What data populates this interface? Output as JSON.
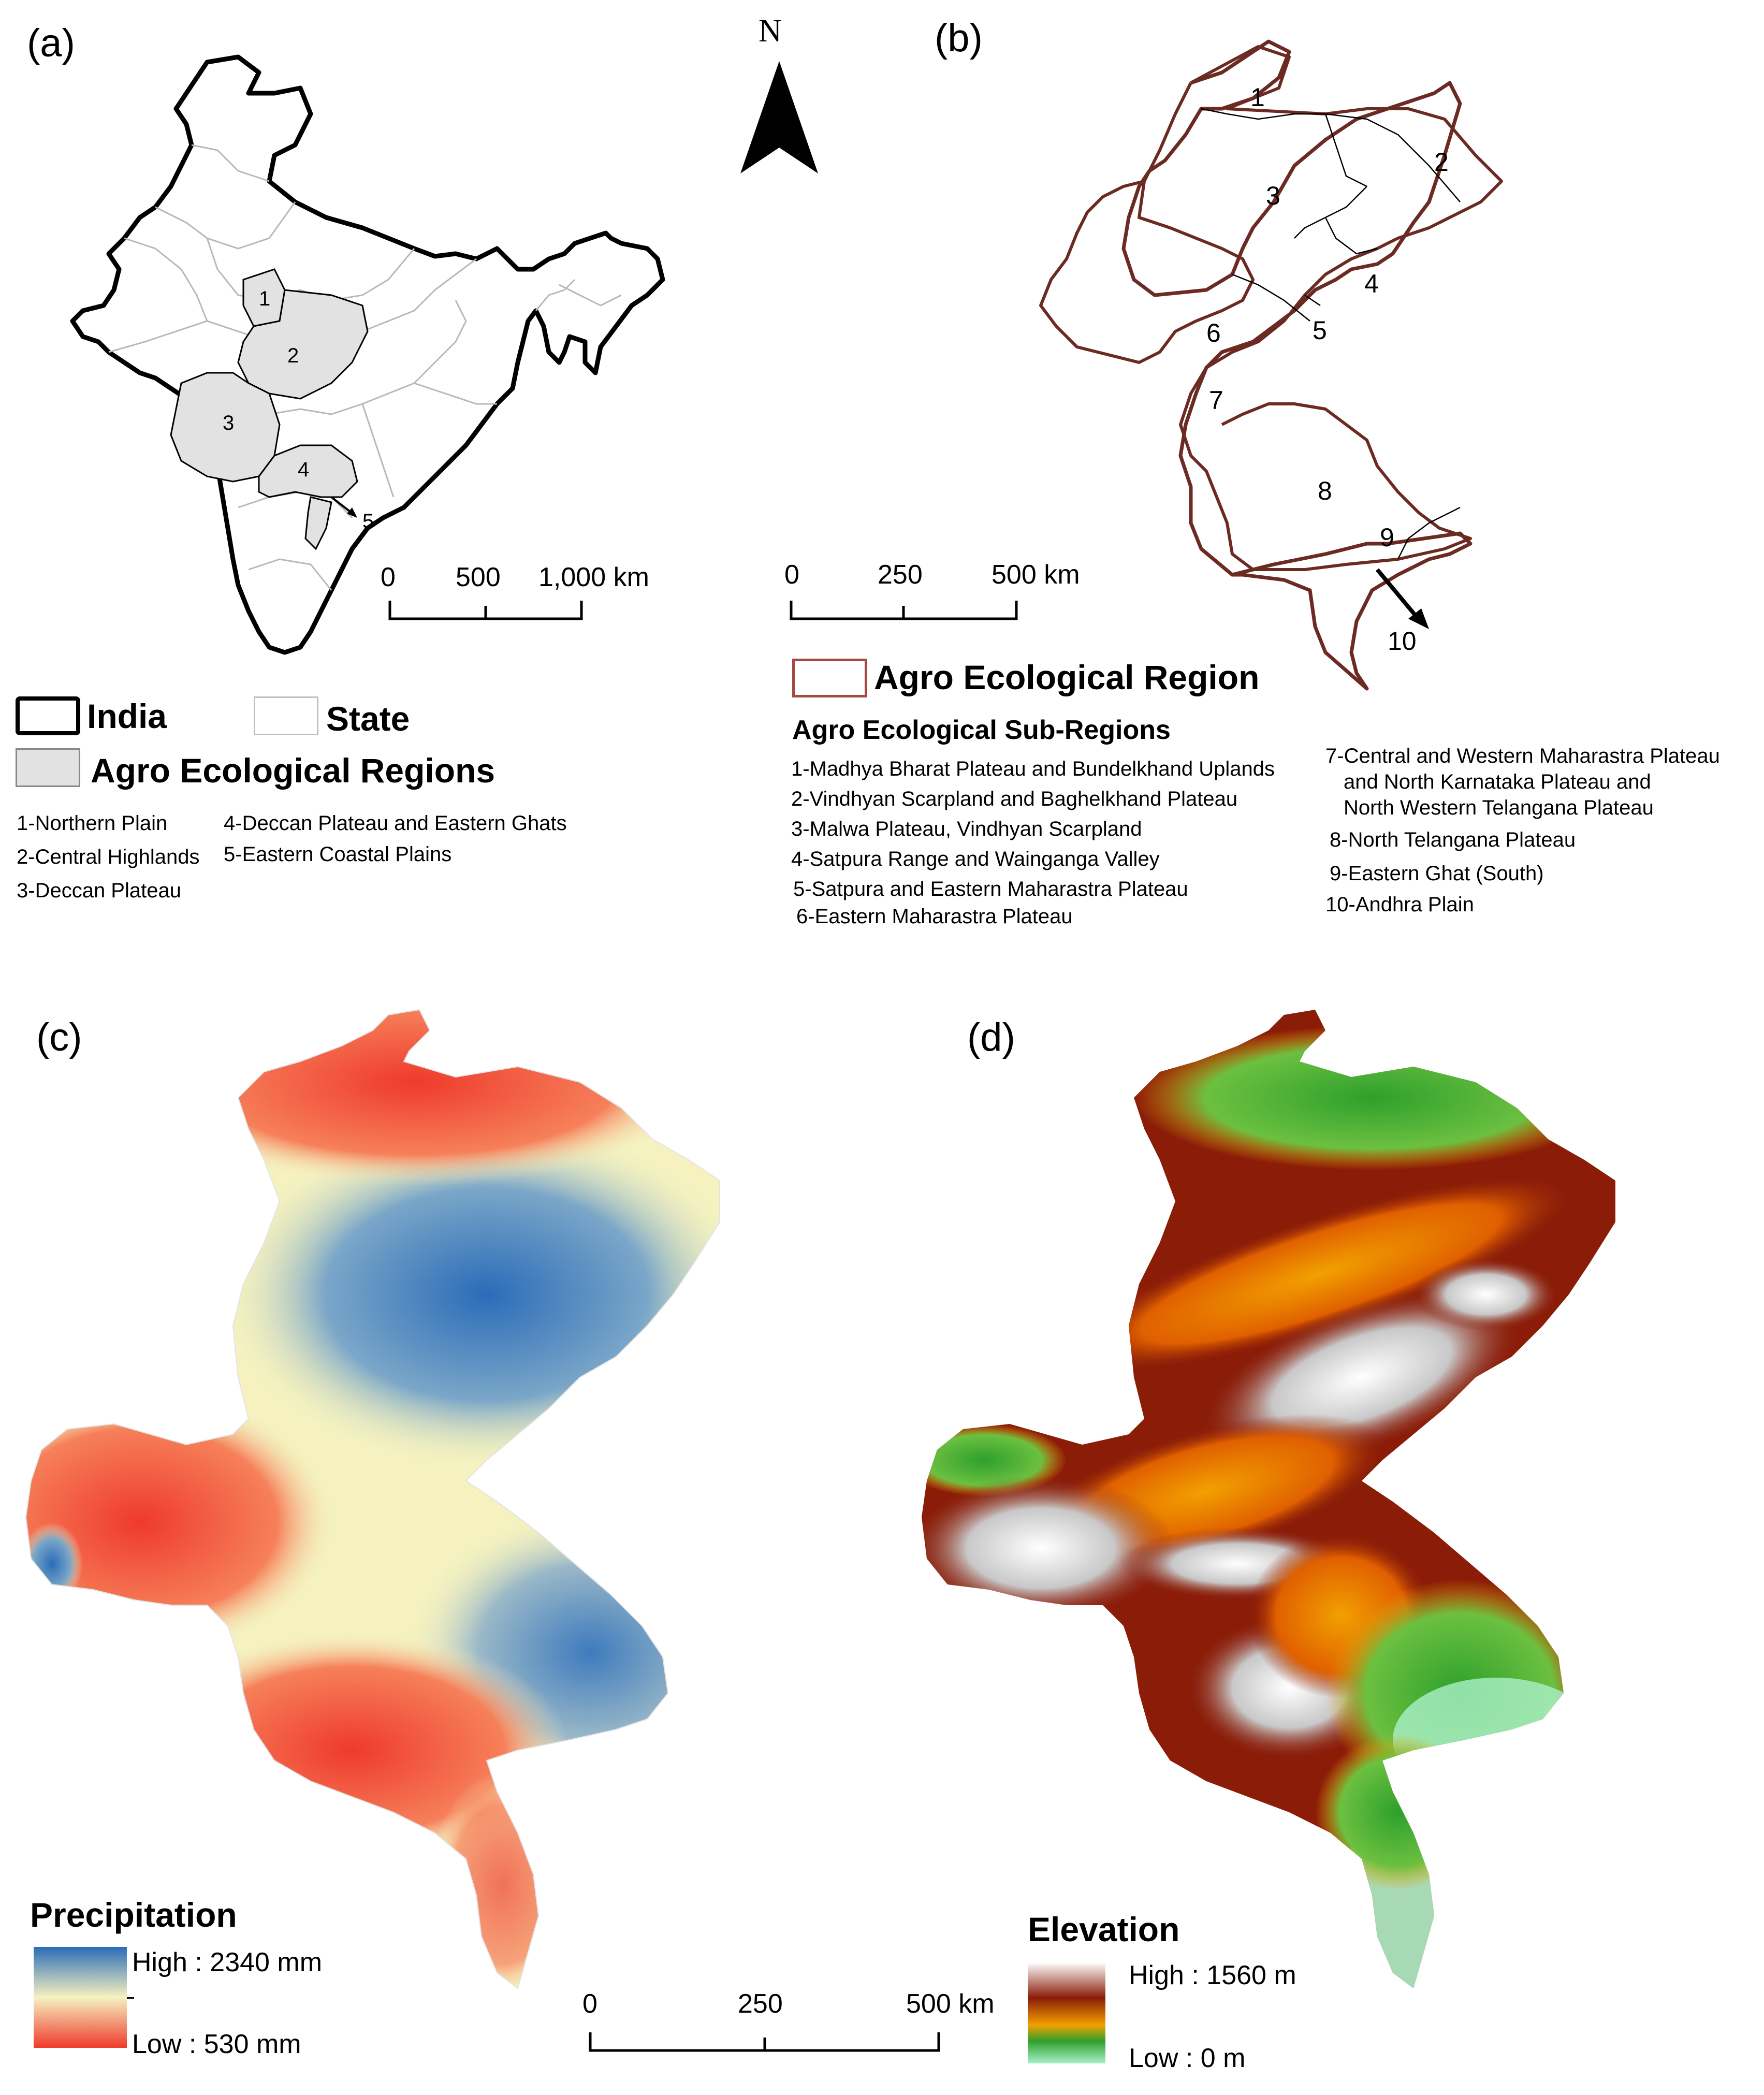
{
  "north_arrow": {
    "label": "N"
  },
  "panel_a": {
    "label": "(a)",
    "region_numbers": [
      "1",
      "2",
      "3",
      "4",
      "5"
    ],
    "scale": {
      "ticks": [
        "0",
        "500",
        "1,000 km"
      ]
    },
    "legend": {
      "india": "India",
      "state": "State",
      "aer": "Agro Ecological Regions"
    },
    "items": [
      "1-Northern Plain",
      "2-Central Highlands",
      "3-Deccan Plateau",
      "4-Deccan Plateau and Eastern Ghats",
      "5-Eastern Coastal Plains"
    ]
  },
  "panel_b": {
    "label": "(b)",
    "region_numbers": [
      "1",
      "2",
      "3",
      "4",
      "5",
      "6",
      "7",
      "8",
      "9",
      "10"
    ],
    "scale": {
      "ticks": [
        "0",
        "250",
        "500 km"
      ]
    },
    "legend": {
      "aer": "Agro Ecological Region",
      "sub_title": "Agro Ecological Sub-Regions"
    },
    "items_left": [
      "1-Madhya Bharat Plateau and Bundelkhand Uplands",
      "2-Vindhyan Scarpland and Baghelkhand Plateau",
      "3-Malwa Plateau, Vindhyan Scarpland",
      "4-Satpura Range and Wainganga Valley",
      "5-Satpura and Eastern Maharastra Plateau",
      "6-Eastern Maharastra Plateau"
    ],
    "items_right": [
      "7-Central and Western Maharastra Plateau",
      "and North Karnataka Plateau and",
      "North Western Telangana Plateau",
      "8-North Telangana Plateau",
      "9-Eastern Ghat (South)",
      "10-Andhra Plain"
    ]
  },
  "panel_c": {
    "label": "(c)",
    "legend": {
      "title": "Precipitation",
      "high": "High : 2340 mm",
      "low": "Low : 530 mm"
    },
    "colors": {
      "high": "#2b6cb8",
      "mid": "#f5f2c0",
      "low": "#ef3a2c"
    }
  },
  "panel_d": {
    "label": "(d)",
    "legend": {
      "title": "Elevation",
      "high": "High : 1560 m",
      "low": "Low : 0 m"
    },
    "colors": {
      "high": "#ffffff",
      "upper": "#8a1c08",
      "mid": "#f2a000",
      "lower": "#2ea02c",
      "low": "#aaf0c8"
    }
  },
  "bottom_scale": {
    "ticks": [
      "0",
      "250",
      "500 km"
    ]
  }
}
